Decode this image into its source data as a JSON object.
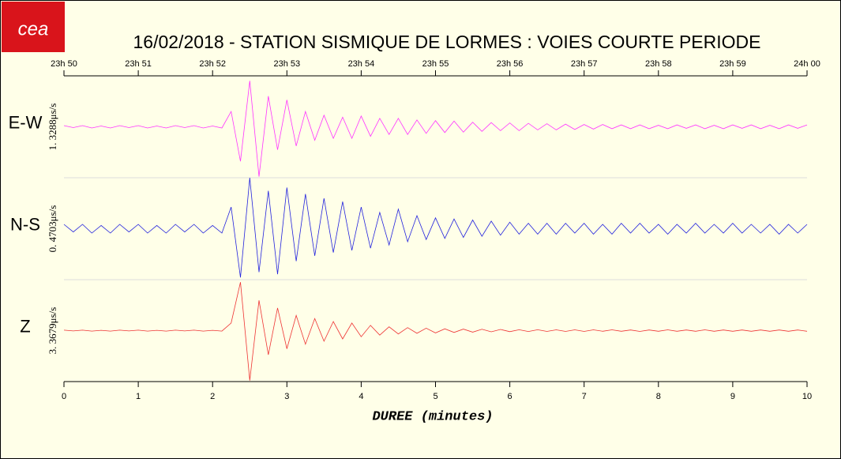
{
  "logo": "cea",
  "chart_data": {
    "type": "seismogram",
    "title": "16/02/2018  -  STATION SISMIQUE DE LORMES : VOIES COURTE PERIODE",
    "xlabel": "DUREE (minutes)",
    "xlim": [
      0,
      10
    ],
    "xticks": [
      0,
      1,
      2,
      3,
      4,
      5,
      6,
      7,
      8,
      9,
      10
    ],
    "x2ticks": [
      {
        "value": 0,
        "label": "23h 50"
      },
      {
        "value": 1,
        "label": "23h 51"
      },
      {
        "value": 2,
        "label": "23h 52"
      },
      {
        "value": 3,
        "label": "23h 53"
      },
      {
        "value": 4,
        "label": "23h 54"
      },
      {
        "value": 5,
        "label": "23h 55"
      },
      {
        "value": 6,
        "label": "23h 56"
      },
      {
        "value": 7,
        "label": "23h 57"
      },
      {
        "value": 8,
        "label": "23h 58"
      },
      {
        "value": 9,
        "label": "23h 59"
      },
      {
        "value": 10,
        "label": "24h 00"
      }
    ],
    "x": [
      0,
      0.125,
      0.25,
      0.375,
      0.5,
      0.625,
      0.75,
      0.875,
      1,
      1.125,
      1.25,
      1.375,
      1.5,
      1.625,
      1.75,
      1.875,
      2,
      2.125,
      2.25,
      2.375,
      2.5,
      2.625,
      2.75,
      2.875,
      3,
      3.125,
      3.25,
      3.375,
      3.5,
      3.625,
      3.75,
      3.875,
      4,
      4.125,
      4.25,
      4.375,
      4.5,
      4.625,
      4.75,
      4.875,
      5,
      5.125,
      5.25,
      5.375,
      5.5,
      5.625,
      5.75,
      5.875,
      6,
      6.125,
      6.25,
      6.375,
      6.5,
      6.625,
      6.75,
      6.875,
      7,
      7.125,
      7.25,
      7.375,
      7.5,
      7.625,
      7.75,
      7.875,
      8,
      8.125,
      8.25,
      8.375,
      8.5,
      8.625,
      8.75,
      8.875,
      9,
      9.125,
      9.25,
      9.375,
      9.5,
      9.625,
      9.75,
      9.875,
      10
    ],
    "series": [
      {
        "name": "E-W",
        "scale_label": "1. 3288μs/s",
        "color": "#ff33ff",
        "ylim": [
          -1.3288,
          1.3288
        ],
        "values": [
          0.03,
          -0.02,
          0.03,
          -0.03,
          0.02,
          -0.03,
          0.03,
          -0.02,
          0.03,
          -0.03,
          0.02,
          -0.03,
          0.03,
          -0.02,
          0.03,
          -0.03,
          0.02,
          -0.03,
          0.4,
          -0.9,
          1.2,
          -1.3,
          0.8,
          -0.6,
          0.7,
          -0.5,
          0.4,
          -0.35,
          0.3,
          -0.3,
          0.25,
          -0.3,
          0.28,
          -0.25,
          0.22,
          -0.2,
          0.22,
          -0.2,
          0.18,
          -0.17,
          0.16,
          -0.15,
          0.15,
          -0.14,
          0.12,
          -0.12,
          0.11,
          -0.1,
          0.1,
          -0.1,
          0.09,
          -0.08,
          0.08,
          -0.08,
          0.07,
          -0.07,
          0.06,
          -0.06,
          0.06,
          -0.05,
          0.05,
          -0.05,
          0.05,
          -0.05,
          0.04,
          -0.05,
          0.05,
          -0.04,
          0.05,
          -0.05,
          0.04,
          -0.05,
          0.05,
          -0.04,
          0.05,
          -0.05,
          0.04,
          -0.05,
          0.05,
          -0.04,
          0.05
        ]
      },
      {
        "name": "N-S",
        "scale_label": "0. 4703μs/s",
        "color": "#2222dd",
        "ylim": [
          -0.4703,
          0.4703
        ],
        "values": [
          0.04,
          -0.03,
          0.04,
          -0.04,
          0.03,
          -0.04,
          0.04,
          -0.03,
          0.04,
          -0.04,
          0.03,
          -0.04,
          0.04,
          -0.03,
          0.04,
          -0.04,
          0.03,
          -0.04,
          0.2,
          -0.45,
          0.47,
          -0.4,
          0.35,
          -0.42,
          0.38,
          -0.3,
          0.32,
          -0.25,
          0.28,
          -0.22,
          0.25,
          -0.2,
          0.2,
          -0.18,
          0.15,
          -0.15,
          0.18,
          -0.12,
          0.12,
          -0.1,
          0.1,
          -0.09,
          0.09,
          -0.08,
          0.08,
          -0.07,
          0.07,
          -0.06,
          0.06,
          -0.05,
          0.05,
          -0.05,
          0.05,
          -0.05,
          0.05,
          -0.04,
          0.05,
          -0.05,
          0.04,
          -0.05,
          0.05,
          -0.04,
          0.05,
          -0.04,
          0.04,
          -0.05,
          0.04,
          -0.04,
          0.05,
          -0.04,
          0.04,
          -0.04,
          0.05,
          -0.04,
          0.04,
          -0.04,
          0.04,
          -0.05,
          0.04,
          -0.04,
          0.04
        ]
      },
      {
        "name": "Z",
        "scale_label": "3. 3679μs/s",
        "color": "#ee3333",
        "ylim": [
          -3.3679,
          3.3679
        ],
        "values": [
          0.03,
          -0.02,
          0.03,
          -0.03,
          0.02,
          -0.03,
          0.03,
          -0.02,
          0.03,
          -0.03,
          0.02,
          -0.03,
          0.03,
          -0.02,
          0.03,
          -0.03,
          0.02,
          -0.03,
          0.5,
          3.2,
          -3.3,
          2.0,
          -1.6,
          1.5,
          -1.2,
          1.0,
          -0.9,
          0.8,
          -0.7,
          0.6,
          -0.55,
          0.5,
          -0.4,
          0.35,
          -0.3,
          0.25,
          -0.22,
          0.2,
          -0.18,
          0.16,
          -0.15,
          0.12,
          -0.12,
          0.1,
          -0.1,
          0.09,
          -0.08,
          0.08,
          -0.07,
          0.06,
          -0.06,
          0.06,
          -0.05,
          0.05,
          -0.05,
          0.05,
          -0.05,
          0.05,
          -0.04,
          0.05,
          -0.04,
          0.04,
          -0.05,
          0.04,
          -0.04,
          0.05,
          -0.04,
          0.04,
          -0.04,
          0.05,
          -0.04,
          0.04,
          -0.04,
          0.04,
          -0.04,
          0.04,
          -0.04,
          0.04,
          -0.04,
          0.04,
          -0.04
        ]
      }
    ]
  }
}
